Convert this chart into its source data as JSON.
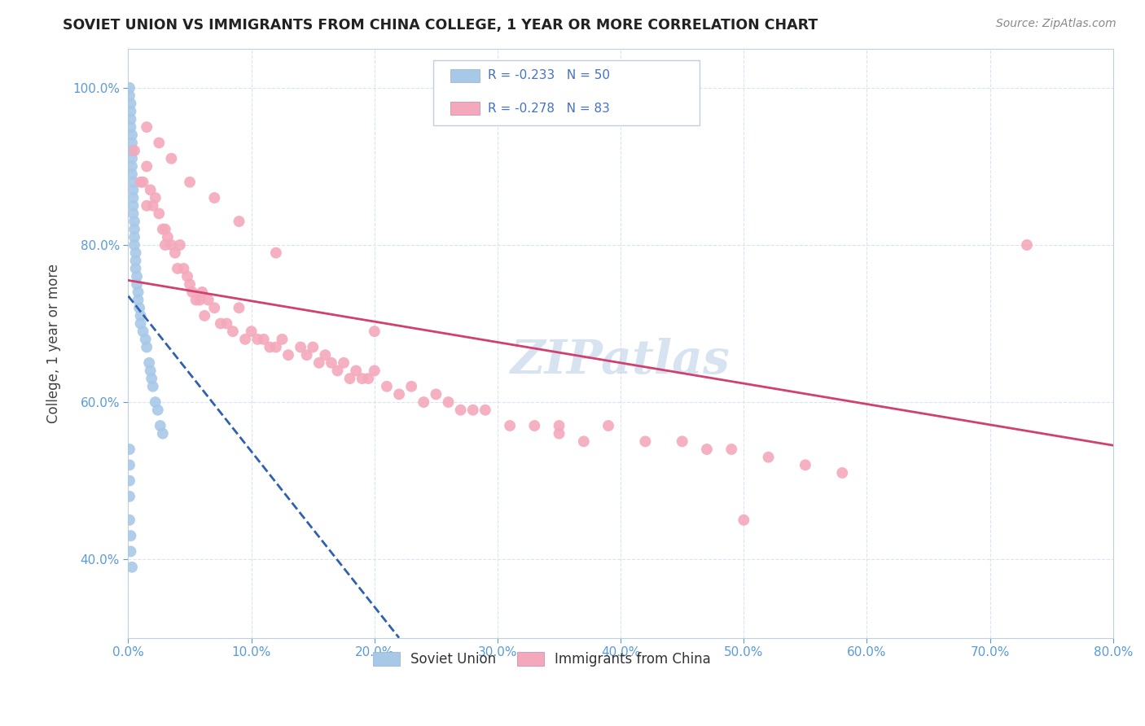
{
  "title": "SOVIET UNION VS IMMIGRANTS FROM CHINA COLLEGE, 1 YEAR OR MORE CORRELATION CHART",
  "source": "Source: ZipAtlas.com",
  "ylabel": "College, 1 year or more",
  "xlim": [
    0.0,
    0.8
  ],
  "ylim": [
    0.3,
    1.05
  ],
  "xticks": [
    0.0,
    0.1,
    0.2,
    0.3,
    0.4,
    0.5,
    0.6,
    0.7,
    0.8
  ],
  "xticklabels": [
    "0.0%",
    "10.0%",
    "20.0%",
    "30.0%",
    "40.0%",
    "50.0%",
    "60.0%",
    "70.0%",
    "80.0%"
  ],
  "yticks": [
    0.4,
    0.6,
    0.8,
    1.0
  ],
  "yticklabels": [
    "40.0%",
    "60.0%",
    "80.0%",
    "100.0%"
  ],
  "soviet_color": "#a8c8e8",
  "china_color": "#f4a8bc",
  "soviet_line_color": "#3060b0",
  "china_line_color": "#d04070",
  "tick_color": "#5b9bd5",
  "background_color": "#ffffff",
  "grid_color": "#d8e4f0",
  "watermark_color": "#c8d8ec",
  "legend_r_color": "#4472c4",
  "soviet_x": [
    0.001,
    0.001,
    0.002,
    0.002,
    0.002,
    0.002,
    0.003,
    0.003,
    0.003,
    0.003,
    0.003,
    0.003,
    0.004,
    0.004,
    0.004,
    0.004,
    0.004,
    0.005,
    0.005,
    0.005,
    0.005,
    0.006,
    0.006,
    0.006,
    0.007,
    0.007,
    0.008,
    0.008,
    0.009,
    0.01,
    0.01,
    0.012,
    0.014,
    0.015,
    0.017,
    0.018,
    0.019,
    0.02,
    0.022,
    0.024,
    0.026,
    0.028,
    0.001,
    0.001,
    0.001,
    0.001,
    0.001,
    0.002,
    0.002,
    0.003
  ],
  "soviet_y": [
    1.0,
    0.99,
    0.98,
    0.97,
    0.96,
    0.95,
    0.94,
    0.93,
    0.92,
    0.91,
    0.9,
    0.89,
    0.88,
    0.87,
    0.86,
    0.85,
    0.84,
    0.83,
    0.82,
    0.81,
    0.8,
    0.79,
    0.78,
    0.77,
    0.76,
    0.75,
    0.74,
    0.73,
    0.72,
    0.71,
    0.7,
    0.69,
    0.68,
    0.67,
    0.65,
    0.64,
    0.63,
    0.62,
    0.6,
    0.59,
    0.57,
    0.56,
    0.54,
    0.52,
    0.5,
    0.48,
    0.45,
    0.43,
    0.41,
    0.39
  ],
  "china_x": [
    0.005,
    0.01,
    0.012,
    0.015,
    0.015,
    0.018,
    0.02,
    0.022,
    0.025,
    0.028,
    0.03,
    0.03,
    0.032,
    0.035,
    0.038,
    0.04,
    0.042,
    0.045,
    0.048,
    0.05,
    0.052,
    0.055,
    0.058,
    0.06,
    0.062,
    0.065,
    0.07,
    0.075,
    0.08,
    0.085,
    0.09,
    0.095,
    0.1,
    0.105,
    0.11,
    0.115,
    0.12,
    0.125,
    0.13,
    0.14,
    0.145,
    0.15,
    0.155,
    0.16,
    0.165,
    0.17,
    0.175,
    0.18,
    0.185,
    0.19,
    0.195,
    0.2,
    0.21,
    0.22,
    0.23,
    0.24,
    0.25,
    0.26,
    0.27,
    0.28,
    0.29,
    0.31,
    0.33,
    0.35,
    0.37,
    0.39,
    0.42,
    0.45,
    0.47,
    0.49,
    0.52,
    0.55,
    0.58,
    0.015,
    0.025,
    0.035,
    0.05,
    0.07,
    0.09,
    0.12,
    0.2,
    0.35,
    0.5,
    0.73
  ],
  "china_y": [
    0.92,
    0.88,
    0.88,
    0.9,
    0.85,
    0.87,
    0.85,
    0.86,
    0.84,
    0.82,
    0.82,
    0.8,
    0.81,
    0.8,
    0.79,
    0.77,
    0.8,
    0.77,
    0.76,
    0.75,
    0.74,
    0.73,
    0.73,
    0.74,
    0.71,
    0.73,
    0.72,
    0.7,
    0.7,
    0.69,
    0.72,
    0.68,
    0.69,
    0.68,
    0.68,
    0.67,
    0.67,
    0.68,
    0.66,
    0.67,
    0.66,
    0.67,
    0.65,
    0.66,
    0.65,
    0.64,
    0.65,
    0.63,
    0.64,
    0.63,
    0.63,
    0.64,
    0.62,
    0.61,
    0.62,
    0.6,
    0.61,
    0.6,
    0.59,
    0.59,
    0.59,
    0.57,
    0.57,
    0.56,
    0.55,
    0.57,
    0.55,
    0.55,
    0.54,
    0.54,
    0.53,
    0.52,
    0.51,
    0.95,
    0.93,
    0.91,
    0.88,
    0.86,
    0.83,
    0.79,
    0.69,
    0.57,
    0.45,
    0.8
  ],
  "soviet_line_x": [
    0.0,
    0.22
  ],
  "soviet_line_y": [
    0.735,
    0.3
  ],
  "china_line_x": [
    0.0,
    0.8
  ],
  "china_line_y": [
    0.755,
    0.545
  ]
}
